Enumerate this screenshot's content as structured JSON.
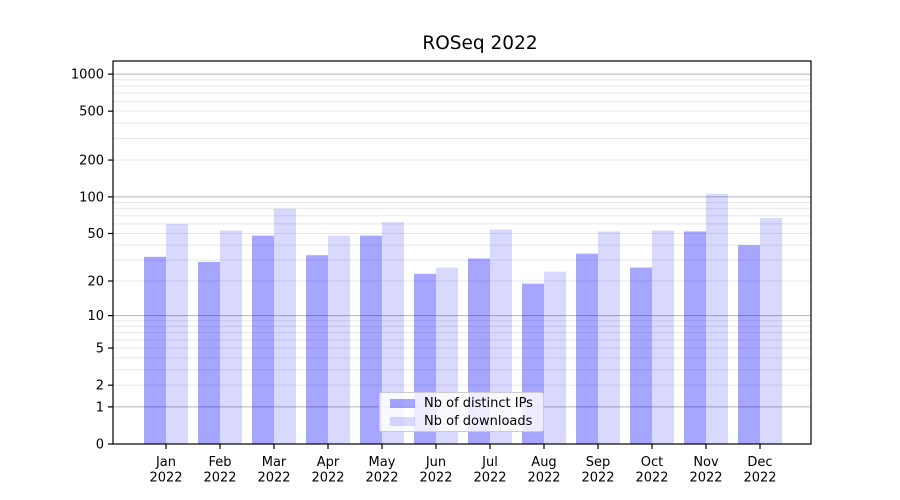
{
  "chart_data": {
    "type": "bar",
    "title": "ROSeq 2022",
    "categories": [
      "Jan 2022",
      "Feb 2022",
      "Mar 2022",
      "Apr 2022",
      "May 2022",
      "Jun 2022",
      "Jul 2022",
      "Aug 2022",
      "Sep 2022",
      "Oct 2022",
      "Nov 2022",
      "Dec 2022"
    ],
    "series": [
      {
        "name": "Nb of distinct IPs",
        "color": "rgba(0,0,255,0.35)",
        "values": [
          32,
          29,
          48,
          33,
          48,
          23,
          31,
          19,
          34,
          26,
          52,
          40
        ]
      },
      {
        "name": "Nb of downloads",
        "color": "rgba(0,0,255,0.15)",
        "values": [
          60,
          53,
          80,
          48,
          62,
          26,
          54,
          24,
          52,
          53,
          106,
          67
        ]
      }
    ],
    "y_scale": "log1p",
    "y_ticks": [
      0,
      1,
      2,
      5,
      10,
      20,
      50,
      100,
      200,
      500,
      1000
    ],
    "y_range": [
      0,
      1000
    ],
    "grid": true,
    "legend_position": "lower center",
    "colors": {
      "major_grid": "#b5b5b5",
      "minor_grid": "#e8e8e8",
      "spine": "#000000"
    }
  }
}
